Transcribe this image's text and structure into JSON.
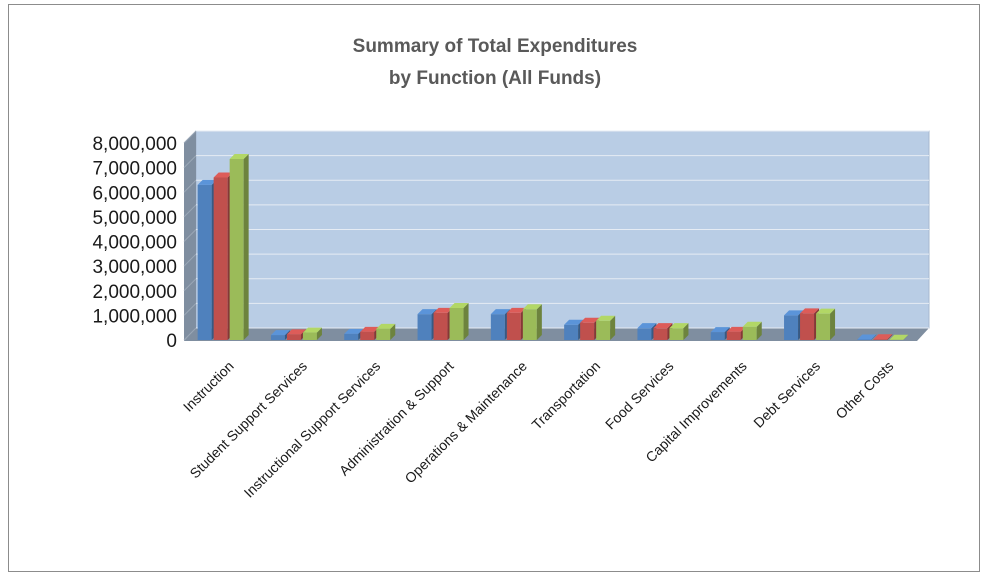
{
  "chart_data": {
    "type": "bar",
    "title_line1": "Summary of Total Expenditures",
    "title_line2": "by Function (All Funds)",
    "xlabel": "",
    "ylabel": "",
    "ylim": [
      0,
      8000000
    ],
    "yticks": [
      "0",
      "1,000,000",
      "2,000,000",
      "3,000,000",
      "4,000,000",
      "5,000,000",
      "6,000,000",
      "7,000,000",
      "8,000,000"
    ],
    "categories": [
      "Instruction",
      "Student Support Services",
      "Instructional Support Services",
      "Administration & Support",
      "Operations & Maintenance",
      "Transportation",
      "Food Services",
      "Capital Improvements",
      "Debt Services",
      "Other Costs"
    ],
    "series": [
      {
        "color": "#4f81bd",
        "values": [
          6300000,
          200000,
          250000,
          1050000,
          1050000,
          620000,
          480000,
          320000,
          1000000,
          20000
        ]
      },
      {
        "color": "#c0504d",
        "values": [
          6600000,
          230000,
          330000,
          1100000,
          1100000,
          700000,
          480000,
          330000,
          1080000,
          30000
        ]
      },
      {
        "color": "#9bbb59",
        "values": [
          7350000,
          300000,
          450000,
          1300000,
          1250000,
          780000,
          480000,
          540000,
          1070000,
          10000
        ]
      }
    ],
    "grid": true,
    "legend": "none",
    "plot_background": "#b9cde5",
    "floor_color": "#7f8ea0"
  }
}
